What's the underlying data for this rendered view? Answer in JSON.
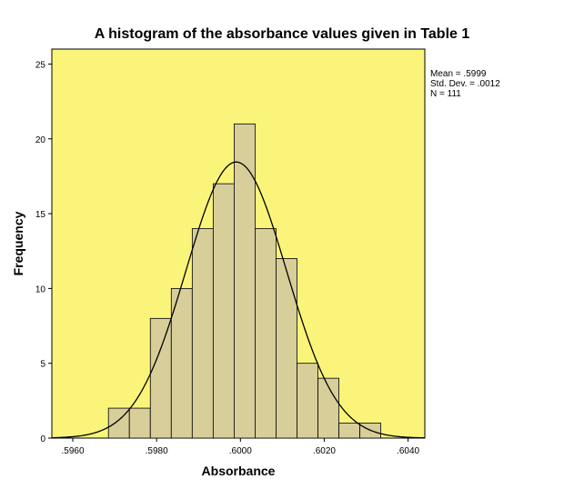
{
  "chart_data": {
    "type": "bar",
    "title": "A histogram of  the absorbance values given in Table 1",
    "xlabel": "Absorbance",
    "ylabel": "Frequency",
    "xlim": [
      0.5955,
      0.6044
    ],
    "ylim": [
      0,
      26
    ],
    "x_ticks": [
      0.596,
      0.598,
      0.6,
      0.602,
      0.604
    ],
    "x_tick_labels": [
      ".5960",
      ".5980",
      ".6000",
      ".6020",
      ".6040"
    ],
    "y_ticks": [
      0,
      5,
      10,
      15,
      20,
      25
    ],
    "y_tick_labels": [
      "0",
      "5",
      "10",
      "15",
      "20",
      "25"
    ],
    "bin_width": 0.0005,
    "bin_centers": [
      0.5971,
      0.5976,
      0.5981,
      0.5986,
      0.5991,
      0.5996,
      0.6001,
      0.6006,
      0.6011,
      0.6016,
      0.6021,
      0.6026,
      0.6031
    ],
    "values": [
      2,
      2,
      8,
      10,
      14,
      17,
      21,
      14,
      12,
      5,
      4,
      1,
      1
    ],
    "normal_curve": {
      "mean": 0.5999,
      "std": 0.0012,
      "n": 111
    },
    "stats_text": [
      "Mean = .5999",
      "Std. Dev. = .0012",
      "N = 111"
    ],
    "grid": false,
    "plot_background": "#faf57a",
    "bar_fill": "#d8ce9a",
    "bar_stroke": "#000000"
  }
}
